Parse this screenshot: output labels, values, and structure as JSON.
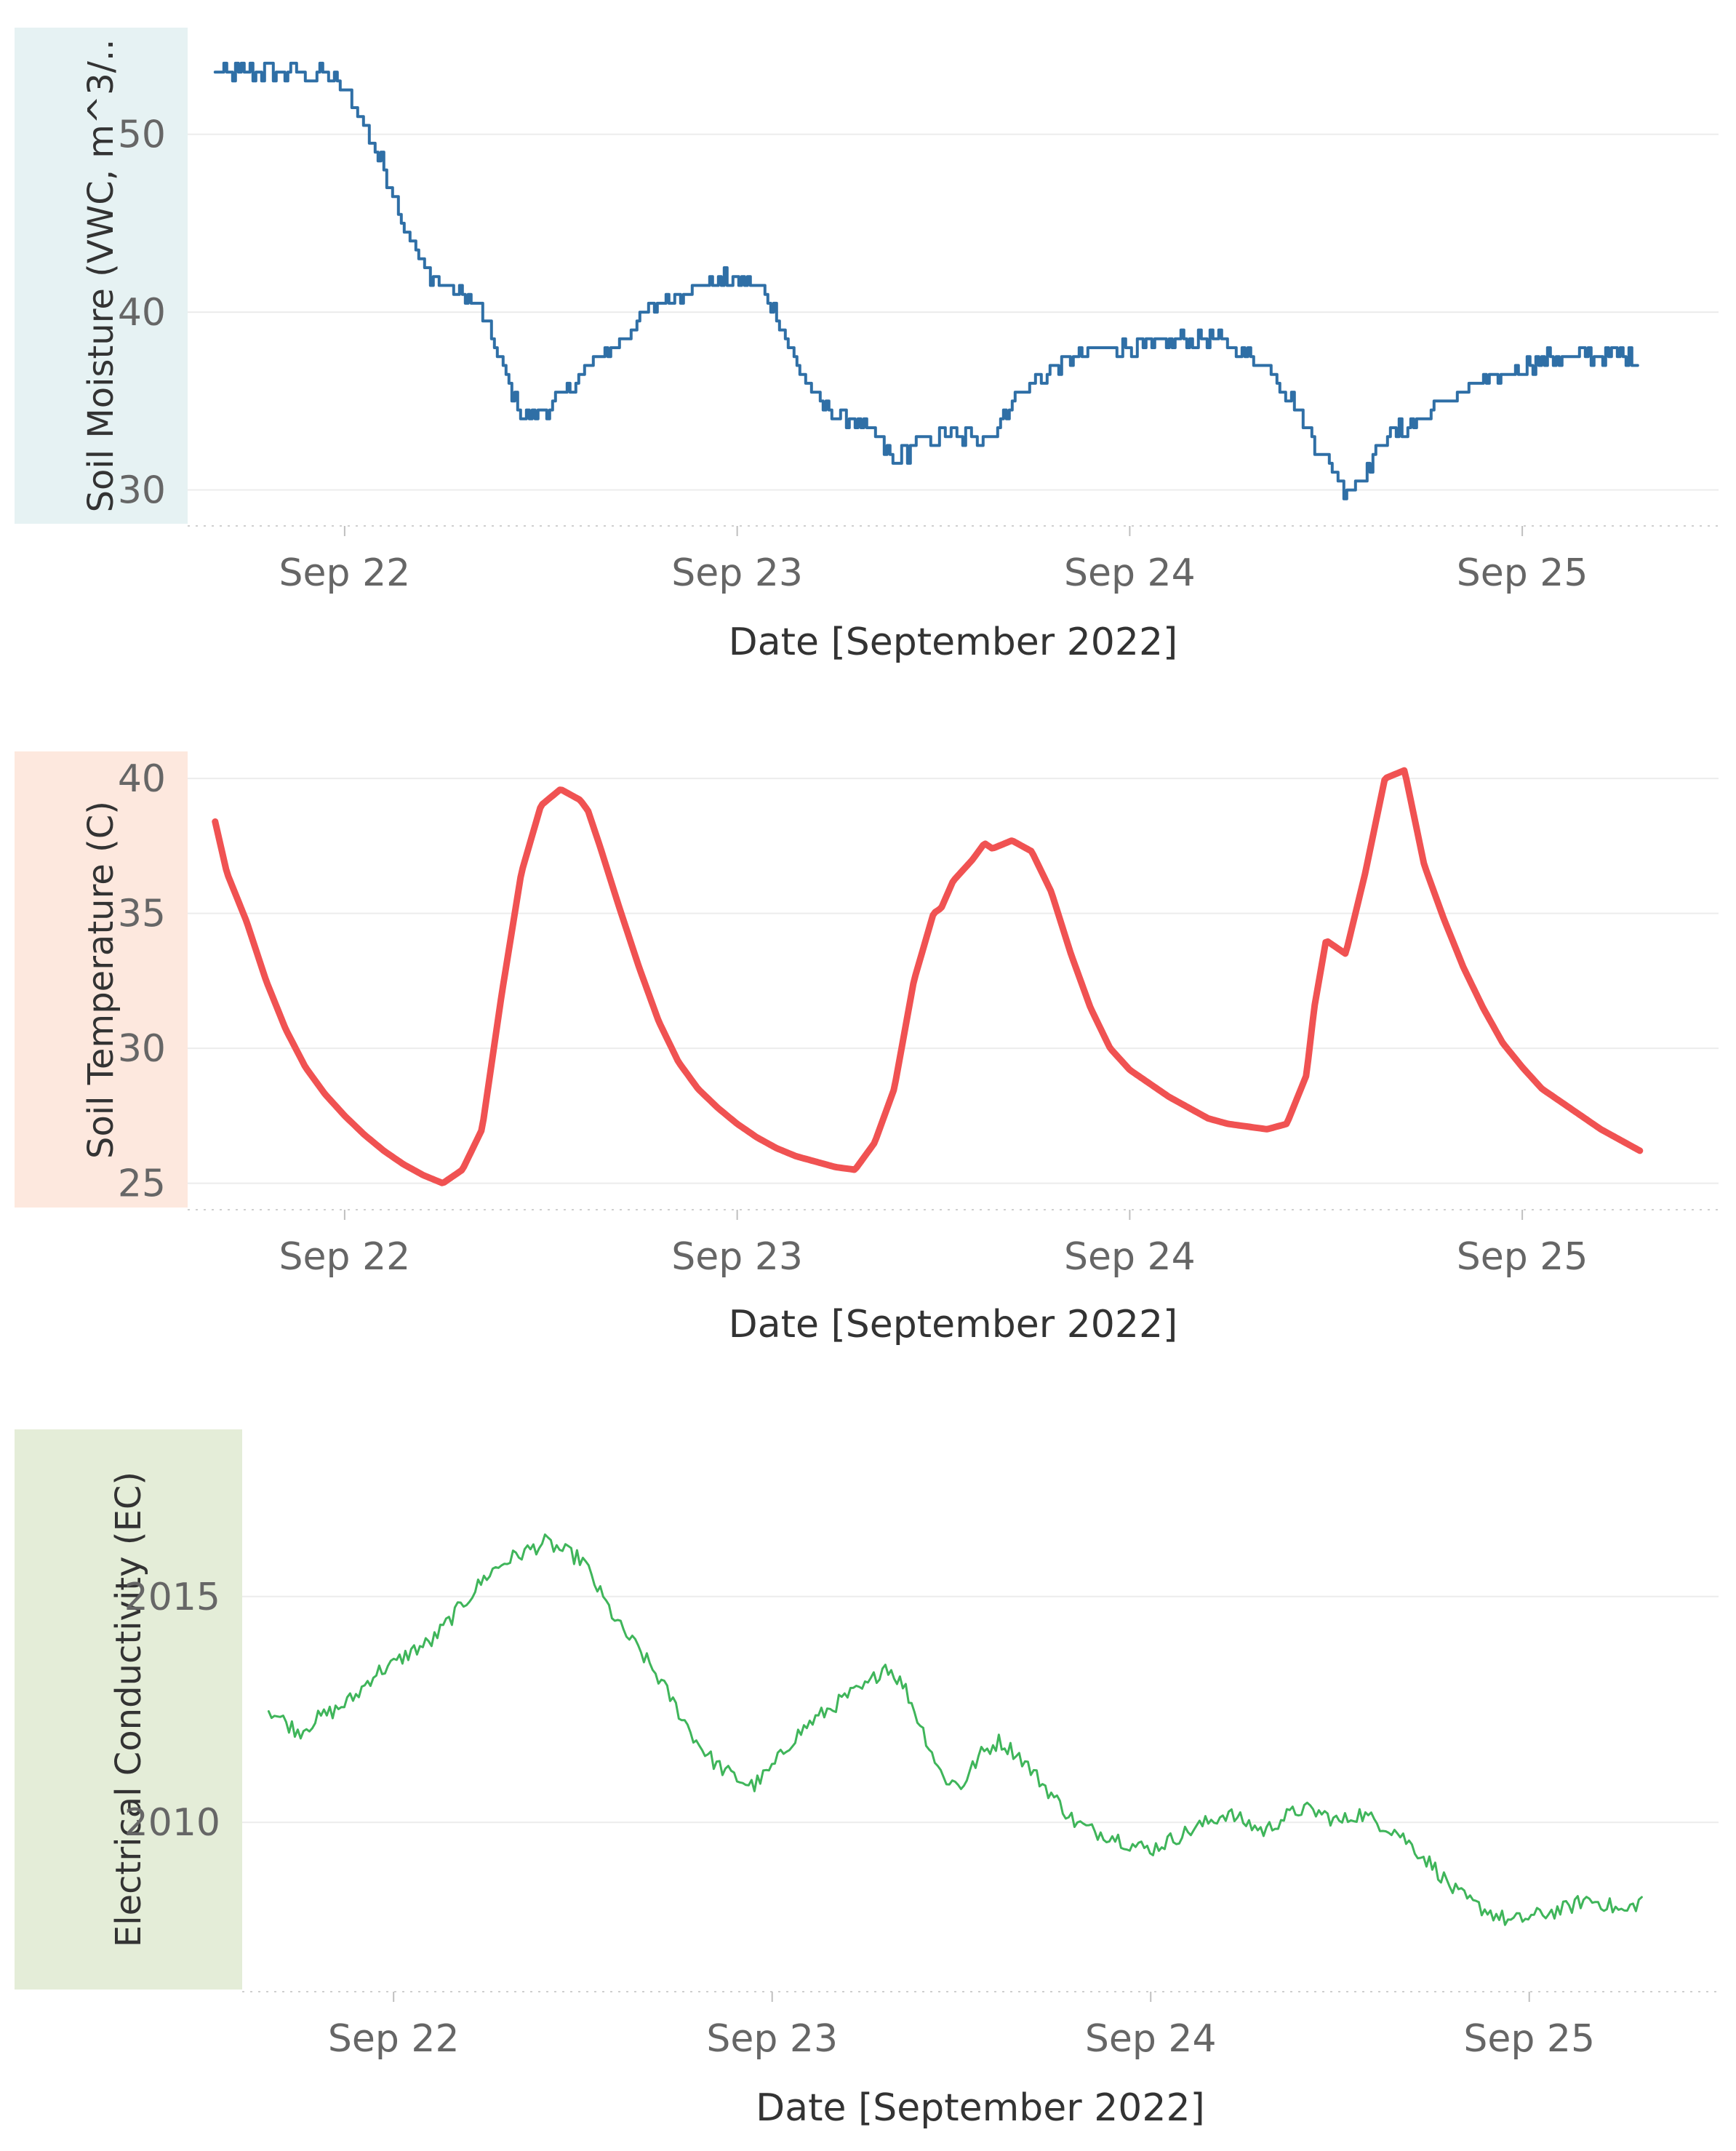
{
  "chart_data": [
    {
      "type": "line",
      "ylabel": "Soil Moisture (VWC, m^3/..",
      "xlabel": "Date [September 2022]",
      "x_ticks": [
        "Sep 22",
        "Sep 23",
        "Sep 24",
        "Sep 25"
      ],
      "y_ticks": [
        30,
        40,
        50
      ],
      "ylim": [
        28.1,
        56.0
      ],
      "xlim": [
        21.6,
        25.5
      ],
      "color": "#2f6fa6",
      "label_bg": "#e6f2f3",
      "series": [
        {
          "name": "Soil Moisture",
          "x": [
            21.67,
            21.8,
            21.95,
            22.0,
            22.05,
            22.1,
            22.15,
            22.2,
            22.25,
            22.3,
            22.35,
            22.4,
            22.45,
            22.5,
            22.55,
            22.6,
            22.65,
            22.7,
            22.75,
            22.8,
            22.85,
            22.9,
            22.95,
            23.0,
            23.05,
            23.1,
            23.15,
            23.2,
            23.25,
            23.3,
            23.35,
            23.4,
            23.45,
            23.5,
            23.55,
            23.6,
            23.65,
            23.7,
            23.75,
            23.8,
            23.85,
            23.9,
            23.95,
            24.0,
            24.05,
            24.1,
            24.15,
            24.2,
            24.25,
            24.3,
            24.35,
            24.4,
            24.45,
            24.5,
            24.55,
            24.6,
            24.65,
            24.7,
            24.75,
            24.8,
            24.85,
            24.9,
            24.95,
            25.0,
            25.05,
            25.1,
            25.15,
            25.2,
            25.25,
            25.3
          ],
          "y": [
            53.5,
            53.5,
            53.3,
            52.5,
            50.5,
            48.0,
            45.0,
            42.5,
            41.5,
            41.0,
            40.0,
            37.0,
            34.2,
            34.5,
            35.2,
            36.5,
            37.5,
            38.5,
            39.5,
            40.5,
            41.0,
            41.5,
            41.8,
            41.8,
            41.5,
            40.0,
            37.0,
            35.0,
            34.3,
            34.0,
            33.0,
            31.5,
            32.5,
            33.0,
            33.0,
            33.0,
            33.2,
            35.0,
            36.0,
            36.8,
            37.5,
            37.8,
            38.0,
            38.0,
            38.0,
            38.2,
            38.5,
            38.5,
            38.2,
            37.5,
            37.0,
            35.5,
            33.5,
            31.5,
            30.0,
            31.0,
            33.0,
            33.5,
            34.0,
            35.0,
            35.5,
            36.0,
            36.5,
            37.0,
            37.3,
            37.5,
            37.5,
            37.6,
            37.6,
            37.2
          ]
        }
      ]
    },
    {
      "type": "line",
      "ylabel": "Soil Temperature (C)",
      "xlabel": "Date [September 2022]",
      "x_ticks": [
        "Sep 22",
        "Sep 23",
        "Sep 24",
        "Sep 25"
      ],
      "y_ticks": [
        25,
        30,
        35,
        40
      ],
      "ylim": [
        24.1,
        41.0
      ],
      "xlim": [
        21.6,
        25.5
      ],
      "color": "#f05252",
      "label_bg": "#fde8de",
      "series": [
        {
          "name": "Soil Temperature",
          "x": [
            21.67,
            21.7,
            21.75,
            21.8,
            21.85,
            21.9,
            21.95,
            22.0,
            22.05,
            22.1,
            22.15,
            22.2,
            22.25,
            22.3,
            22.35,
            22.4,
            22.45,
            22.5,
            22.55,
            22.6,
            22.62,
            22.65,
            22.7,
            22.75,
            22.8,
            22.85,
            22.9,
            22.95,
            23.0,
            23.05,
            23.1,
            23.15,
            23.2,
            23.25,
            23.3,
            23.35,
            23.4,
            23.45,
            23.5,
            23.52,
            23.55,
            23.6,
            23.63,
            23.65,
            23.7,
            23.75,
            23.8,
            23.85,
            23.9,
            23.95,
            24.0,
            24.05,
            24.1,
            24.15,
            24.2,
            24.25,
            24.3,
            24.35,
            24.4,
            24.45,
            24.47,
            24.5,
            24.55,
            24.6,
            24.65,
            24.7,
            24.75,
            24.8,
            24.85,
            24.9,
            24.95,
            25.0,
            25.05,
            25.1,
            25.15,
            25.2,
            25.25,
            25.3
          ],
          "y": [
            38.4,
            36.5,
            34.7,
            32.5,
            30.7,
            29.3,
            28.3,
            27.5,
            26.8,
            26.2,
            25.7,
            25.3,
            25.0,
            25.5,
            27.0,
            32.0,
            36.5,
            39.0,
            39.6,
            39.2,
            38.8,
            37.5,
            35.2,
            33.0,
            31.0,
            29.5,
            28.5,
            27.8,
            27.2,
            26.7,
            26.3,
            26.0,
            25.8,
            25.6,
            25.5,
            26.5,
            28.5,
            32.5,
            35.0,
            35.2,
            36.2,
            37.0,
            37.6,
            37.4,
            37.7,
            37.3,
            35.8,
            33.5,
            31.5,
            30.0,
            29.2,
            28.7,
            28.2,
            27.8,
            27.4,
            27.2,
            27.1,
            27.0,
            27.2,
            29.0,
            31.5,
            34.0,
            33.5,
            36.5,
            40.0,
            40.3,
            36.8,
            34.8,
            33.0,
            31.5,
            30.2,
            29.3,
            28.5,
            28.0,
            27.5,
            27.0,
            26.6,
            26.2
          ]
        }
      ]
    },
    {
      "type": "line",
      "ylabel": "Electrical Conductivity (EC)",
      "xlabel": "Date [September 2022]",
      "x_ticks": [
        "Sep 22",
        "Sep 23",
        "Sep 24",
        "Sep 25"
      ],
      "y_ticks": [
        2010,
        2015
      ],
      "ylim": [
        2006.3,
        2018.7
      ],
      "xlim": [
        21.6,
        25.5
      ],
      "color": "#3fb55a",
      "label_bg": "#e4edd8",
      "series": [
        {
          "name": "Electrical Conductivity",
          "x": [
            21.67,
            21.75,
            21.8,
            21.85,
            21.9,
            21.95,
            22.0,
            22.05,
            22.1,
            22.15,
            22.2,
            22.25,
            22.3,
            22.35,
            22.4,
            22.45,
            22.5,
            22.55,
            22.6,
            22.65,
            22.7,
            22.75,
            22.8,
            22.85,
            22.9,
            22.95,
            23.0,
            23.05,
            23.1,
            23.15,
            23.2,
            23.25,
            23.3,
            23.35,
            23.4,
            23.45,
            23.5,
            23.55,
            23.6,
            23.65,
            23.7,
            23.75,
            23.8,
            23.85,
            23.9,
            23.95,
            24.0,
            24.05,
            24.1,
            24.15,
            24.2,
            24.25,
            24.3,
            24.35,
            24.4,
            24.45,
            24.5,
            24.55,
            24.6,
            24.65,
            24.7,
            24.75,
            24.8,
            24.85,
            24.9,
            24.95,
            25.0,
            25.05,
            25.1,
            25.15,
            25.2,
            25.25,
            25.3
          ],
          "y": [
            2012.5,
            2012.0,
            2012.3,
            2012.5,
            2012.8,
            2013.3,
            2013.5,
            2013.8,
            2014.0,
            2014.5,
            2015.0,
            2015.5,
            2015.8,
            2016.0,
            2016.2,
            2016.0,
            2015.8,
            2015.0,
            2014.3,
            2013.8,
            2013.2,
            2012.5,
            2011.8,
            2011.3,
            2011.0,
            2010.8,
            2011.2,
            2011.8,
            2012.2,
            2012.5,
            2012.8,
            2013.0,
            2013.5,
            2013.0,
            2012.0,
            2011.0,
            2010.8,
            2011.5,
            2011.8,
            2011.5,
            2011.0,
            2010.5,
            2010.0,
            2009.8,
            2009.7,
            2009.5,
            2009.4,
            2009.6,
            2009.8,
            2010.0,
            2010.2,
            2010.0,
            2009.8,
            2010.1,
            2010.3,
            2010.2,
            2010.0,
            2010.2,
            2010.0,
            2009.8,
            2009.4,
            2009.0,
            2008.5,
            2008.2,
            2008.0,
            2007.8,
            2007.9,
            2008.0,
            2008.1,
            2008.3,
            2008.2,
            2008.0,
            2008.3
          ]
        }
      ]
    }
  ]
}
